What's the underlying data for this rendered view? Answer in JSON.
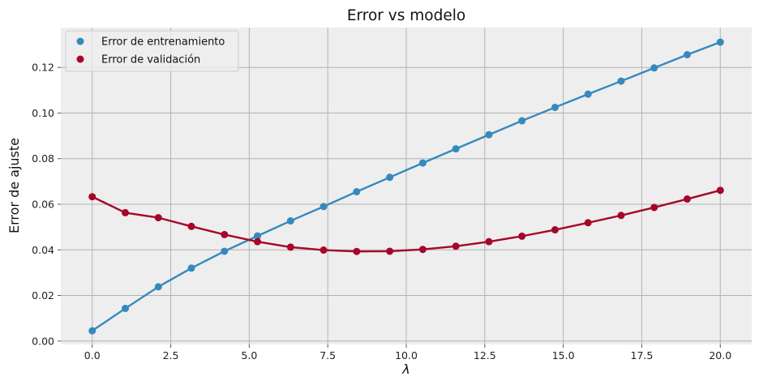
{
  "chart_data": {
    "type": "line",
    "title": "Error vs modelo",
    "xlabel": "λ",
    "ylabel": "Error de ajuste",
    "xlim": [
      -1.0,
      21.0
    ],
    "ylim": [
      -0.0015,
      0.1375
    ],
    "x_ticks": [
      0.0,
      2.5,
      5.0,
      7.5,
      10.0,
      12.5,
      15.0,
      17.5,
      20.0
    ],
    "x_tick_labels": [
      "0.0",
      "2.5",
      "5.0",
      "7.5",
      "10.0",
      "12.5",
      "15.0",
      "17.5",
      "20.0"
    ],
    "y_ticks": [
      0.0,
      0.02,
      0.04,
      0.06,
      0.08,
      0.1,
      0.12
    ],
    "y_tick_labels": [
      "0.00",
      "0.02",
      "0.04",
      "0.06",
      "0.08",
      "0.10",
      "0.12"
    ],
    "grid": true,
    "legend_position": "top-left",
    "x": [
      0.0,
      1.053,
      2.105,
      3.158,
      4.211,
      5.263,
      6.316,
      7.368,
      8.421,
      9.474,
      10.526,
      11.579,
      12.632,
      13.684,
      14.737,
      15.789,
      16.842,
      17.895,
      18.947,
      20.0
    ],
    "series": [
      {
        "name": "Error de entrenamiento",
        "color": "#348abd",
        "values": [
          0.0045,
          0.0143,
          0.0238,
          0.032,
          0.0394,
          0.0461,
          0.0527,
          0.059,
          0.0655,
          0.0718,
          0.0781,
          0.0843,
          0.0905,
          0.0966,
          0.1025,
          0.1083,
          0.114,
          0.1198,
          0.1256,
          0.1311
        ]
      },
      {
        "name": "Error de validación",
        "color": "#a60628",
        "values": [
          0.0633,
          0.0563,
          0.0541,
          0.0503,
          0.0467,
          0.0436,
          0.0412,
          0.0399,
          0.0393,
          0.0394,
          0.0402,
          0.0416,
          0.0436,
          0.046,
          0.0488,
          0.0519,
          0.0551,
          0.0586,
          0.0623,
          0.0661
        ]
      }
    ],
    "colors": {
      "plot_background": "#eeeeee",
      "grid": "#b2b2b2",
      "axes_edge": "#bcbcbc"
    }
  }
}
